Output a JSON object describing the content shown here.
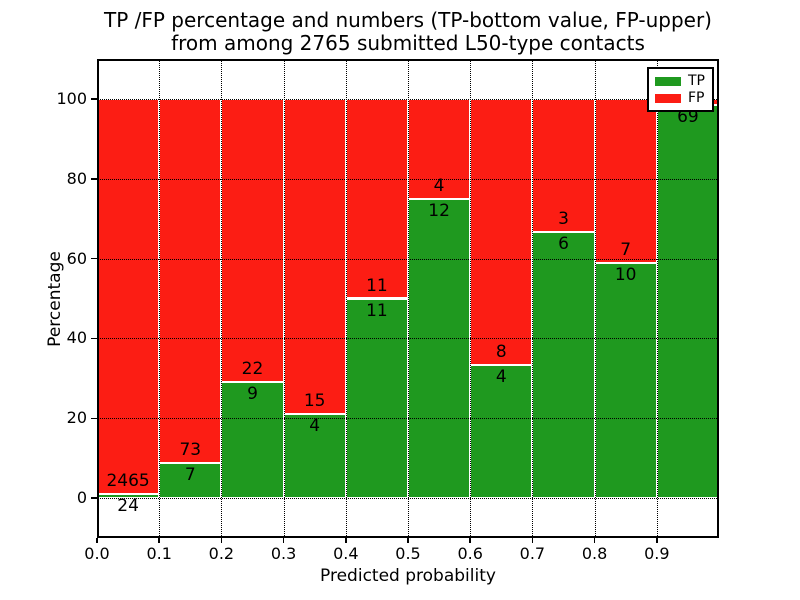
{
  "figure": {
    "title_line1": "TP /FP percentage and numbers (TP-bottom value, FP-upper)",
    "title_line2": "from among 2765 submitted L50-type contacts"
  },
  "axes": {
    "xlabel": "Predicted probability",
    "ylabel": "Percentage",
    "xtick_labels": [
      "0.0",
      "0.1",
      "0.2",
      "0.3",
      "0.4",
      "0.5",
      "0.6",
      "0.7",
      "0.8",
      "0.9"
    ],
    "ytick_labels": [
      "0",
      "20",
      "40",
      "60",
      "80",
      "100"
    ],
    "ytick_values": [
      0,
      20,
      40,
      60,
      80,
      100
    ],
    "ylim": [
      -10,
      110
    ],
    "xlim": [
      0.0,
      1.0
    ],
    "grid_style": "dotted"
  },
  "legend": {
    "position": "upper right",
    "items": [
      {
        "label": "TP",
        "color": "#1f991f"
      },
      {
        "label": "FP",
        "color": "#fc1d14"
      }
    ]
  },
  "chart_data": {
    "type": "bar",
    "stacked": true,
    "normalized": "percent of contacts per bin",
    "title": "TP /FP percentage and numbers (TP-bottom value, FP-upper) from among 2765 submitted L50-type contacts",
    "xlabel": "Predicted probability",
    "ylabel": "Percentage",
    "total_submitted_contacts": 2765,
    "bin_edges": [
      0.0,
      0.1,
      0.2,
      0.3,
      0.4,
      0.5,
      0.6,
      0.7,
      0.8,
      0.9,
      1.0
    ],
    "categories": [
      "0.0-0.1",
      "0.1-0.2",
      "0.2-0.3",
      "0.3-0.4",
      "0.4-0.5",
      "0.5-0.6",
      "0.6-0.7",
      "0.7-0.8",
      "0.8-0.9",
      "0.9-1.0"
    ],
    "series": [
      {
        "name": "TP",
        "color": "#1f991f",
        "counts": [
          24,
          7,
          9,
          4,
          11,
          12,
          4,
          6,
          10,
          69
        ],
        "pct": [
          0.96,
          8.75,
          29.03,
          21.05,
          50.0,
          75.0,
          33.33,
          66.67,
          58.82,
          98.57
        ]
      },
      {
        "name": "FP",
        "color": "#fc1d14",
        "counts": [
          2465,
          73,
          22,
          15,
          11,
          4,
          8,
          3,
          7,
          null
        ],
        "pct": [
          99.04,
          91.25,
          70.97,
          78.95,
          50.0,
          25.0,
          66.67,
          33.33,
          41.18,
          1.43
        ]
      }
    ],
    "ylim": [
      -10,
      110
    ],
    "grid": true,
    "legend_position": "upper right"
  }
}
